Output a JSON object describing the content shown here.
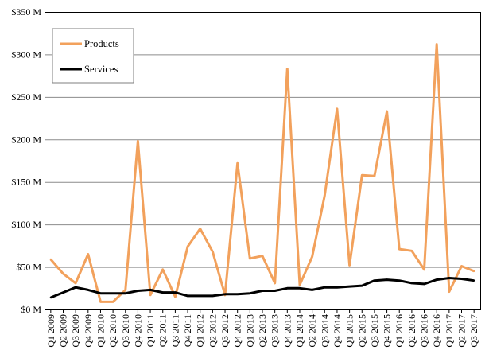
{
  "chart_data": {
    "type": "line",
    "title": "",
    "xlabel": "",
    "ylabel": "",
    "y_unit_suffix": " M",
    "y_prefix": "$",
    "ylim": [
      0,
      350
    ],
    "y_tick_step": 50,
    "y_tick_labels": [
      "$0 M",
      "$50 M",
      "$100 M",
      "$150 M",
      "$200 M",
      "$250 M",
      "$300 M",
      "$350 M"
    ],
    "grid": true,
    "legend_position": "top-left",
    "categories": [
      "Q1 2009",
      "Q2 2009",
      "Q3 2009",
      "Q4 2009",
      "Q1 2010",
      "Q2 2010",
      "Q3 2010",
      "Q4 2010",
      "Q1 2011",
      "Q2 2011",
      "Q3 2011",
      "Q4 2011",
      "Q1 2012",
      "Q2 2012",
      "Q3 2012",
      "Q4 2012",
      "Q1 2013",
      "Q2 2013",
      "Q3 2013",
      "Q4 2013",
      "Q1 2014",
      "Q2 2014",
      "Q3 2014",
      "Q4 2014",
      "Q1 2015",
      "Q2 2015",
      "Q3 2015",
      "Q4 2015",
      "Q1 2016",
      "Q2 2016",
      "Q3 2016",
      "Q4 2016",
      "Q1 2017",
      "Q2 2017",
      "Q3 2017"
    ],
    "series": [
      {
        "name": "Products",
        "color": "#f2a15c",
        "values": [
          59,
          42,
          31,
          65,
          9,
          9,
          23,
          198,
          17,
          47,
          15,
          74,
          95,
          68,
          17,
          172,
          60,
          63,
          31,
          283,
          29,
          62,
          134,
          236,
          52,
          158,
          157,
          233,
          71,
          69,
          47,
          312,
          21,
          51,
          45
        ]
      },
      {
        "name": "Services",
        "color": "#000000",
        "values": [
          14,
          20,
          26,
          23,
          19,
          19,
          19,
          22,
          23,
          20,
          20,
          16,
          16,
          16,
          18,
          18,
          19,
          22,
          22,
          25,
          25,
          23,
          26,
          26,
          27,
          28,
          34,
          35,
          34,
          31,
          30,
          35,
          37,
          36,
          34
        ]
      }
    ]
  }
}
